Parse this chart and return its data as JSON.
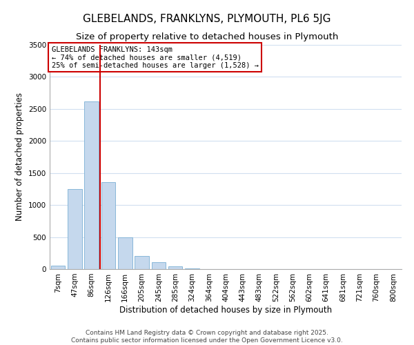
{
  "title": "GLEBELANDS, FRANKLYNS, PLYMOUTH, PL6 5JG",
  "subtitle": "Size of property relative to detached houses in Plymouth",
  "xlabel": "Distribution of detached houses by size in Plymouth",
  "ylabel": "Number of detached properties",
  "bar_labels": [
    "7sqm",
    "47sqm",
    "86sqm",
    "126sqm",
    "166sqm",
    "205sqm",
    "245sqm",
    "285sqm",
    "324sqm",
    "364sqm",
    "404sqm",
    "443sqm",
    "483sqm",
    "522sqm",
    "562sqm",
    "602sqm",
    "641sqm",
    "681sqm",
    "721sqm",
    "760sqm",
    "800sqm"
  ],
  "bar_values": [
    55,
    1250,
    2620,
    1360,
    500,
    200,
    110,
    45,
    15,
    5,
    2,
    1,
    0,
    0,
    0,
    0,
    0,
    0,
    0,
    0,
    0
  ],
  "bar_color": "#c5d8ed",
  "bar_edgecolor": "#7aafd4",
  "property_label": "GLEBELANDS FRANKLYNS: 143sqm",
  "pct_smaller": 74,
  "n_smaller": 4519,
  "pct_larger_semi": 25,
  "n_larger_semi": 1528,
  "vline_x_index": 3,
  "annotation_box_color": "#ffffff",
  "annotation_box_edge": "#cc0000",
  "vline_color": "#cc0000",
  "ylim": [
    0,
    3500
  ],
  "grid_color": "#d0dff0",
  "background_color": "#ffffff",
  "footer1": "Contains HM Land Registry data © Crown copyright and database right 2025.",
  "footer2": "Contains public sector information licensed under the Open Government Licence v3.0.",
  "title_fontsize": 11,
  "subtitle_fontsize": 9.5,
  "axis_label_fontsize": 8.5,
  "tick_fontsize": 7.5,
  "annotation_fontsize": 7.5,
  "footer_fontsize": 6.5
}
